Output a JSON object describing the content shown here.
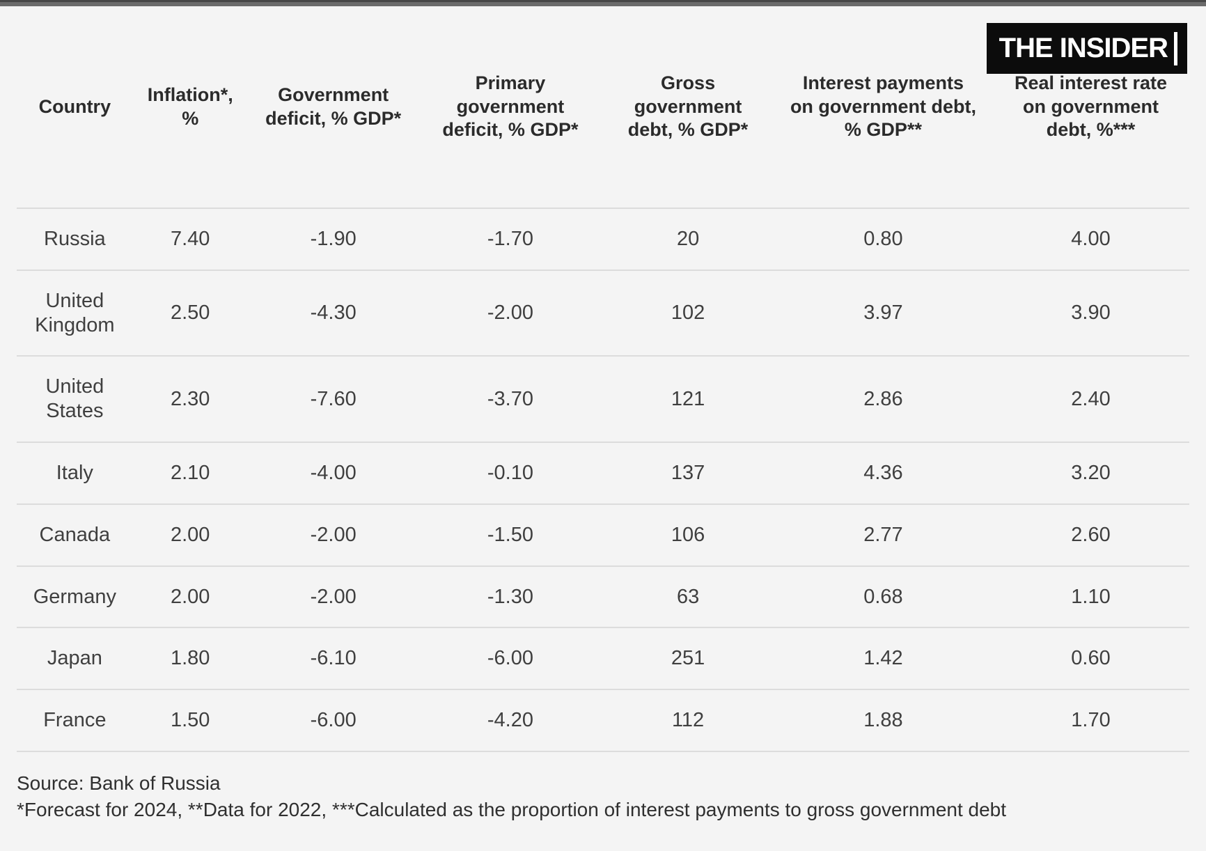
{
  "page": {
    "background": "#f4f4f4",
    "topbar_color": "#6b6b6b",
    "topbar_edge_color": "#474747",
    "divider_color": "#dcdcdc",
    "header_text_color": "#2b2b2b",
    "body_text_color": "#3f3f3f"
  },
  "logo": {
    "text": "THE INSIDER",
    "background": "#0c0c0c",
    "color": "#ffffff"
  },
  "table": {
    "columns": [
      {
        "key": "country",
        "lines": [
          "Country"
        ],
        "width_pct": 9.9
      },
      {
        "key": "inflation",
        "lines": [
          "Inflation*,",
          "%"
        ],
        "width_pct": 9.8
      },
      {
        "key": "gov_deficit",
        "lines": [
          "Government",
          "deficit, % GDP*"
        ],
        "width_pct": 14.6
      },
      {
        "key": "primary_deficit",
        "lines": [
          "Primary",
          "government",
          "deficit, % GDP*"
        ],
        "width_pct": 15.6
      },
      {
        "key": "gross_debt",
        "lines": [
          "Gross",
          "government",
          "debt, % GDP*"
        ],
        "width_pct": 14.7
      },
      {
        "key": "interest_payments",
        "lines": [
          "Interest payments",
          "on government debt,",
          "% GDP**"
        ],
        "width_pct": 18.6
      },
      {
        "key": "real_rate",
        "lines": [
          "Real interest rate",
          "on government",
          "debt, %***"
        ],
        "width_pct": 16.8
      }
    ],
    "rows": [
      {
        "country": "Russia",
        "values": [
          "7.40",
          "-1.90",
          "-1.70",
          "20",
          "0.80",
          "4.00"
        ]
      },
      {
        "country": "United Kingdom",
        "values": [
          "2.50",
          "-4.30",
          "-2.00",
          "102",
          "3.97",
          "3.90"
        ]
      },
      {
        "country": "United States",
        "values": [
          "2.30",
          "-7.60",
          "-3.70",
          "121",
          "2.86",
          "2.40"
        ]
      },
      {
        "country": "Italy",
        "values": [
          "2.10",
          "-4.00",
          "-0.10",
          "137",
          "4.36",
          "3.20"
        ]
      },
      {
        "country": "Canada",
        "values": [
          "2.00",
          "-2.00",
          "-1.50",
          "106",
          "2.77",
          "2.60"
        ]
      },
      {
        "country": "Germany",
        "values": [
          "2.00",
          "-2.00",
          "-1.30",
          "63",
          "0.68",
          "1.10"
        ]
      },
      {
        "country": "Japan",
        "values": [
          "1.80",
          "-6.10",
          "-6.00",
          "251",
          "1.42",
          "0.60"
        ]
      },
      {
        "country": "France",
        "values": [
          "1.50",
          "-6.00",
          "-4.20",
          "112",
          "1.88",
          "1.70"
        ]
      }
    ]
  },
  "footer": {
    "source": "Source: Bank of Russia",
    "notes": "*Forecast for 2024, **Data for 2022, ***Calculated as the proportion of interest payments to gross government debt"
  },
  "chart_data": {
    "type": "table",
    "columns": [
      "Country",
      "Inflation*, %",
      "Government deficit, % GDP*",
      "Primary government deficit, % GDP*",
      "Gross government debt, % GDP*",
      "Interest payments on government debt, % GDP**",
      "Real interest rate on government debt, %***"
    ],
    "rows": [
      [
        "Russia",
        7.4,
        -1.9,
        -1.7,
        20,
        0.8,
        4.0
      ],
      [
        "United Kingdom",
        2.5,
        -4.3,
        -2.0,
        102,
        3.97,
        3.9
      ],
      [
        "United States",
        2.3,
        -7.6,
        -3.7,
        121,
        2.86,
        2.4
      ],
      [
        "Italy",
        2.1,
        -4.0,
        -0.1,
        137,
        4.36,
        3.2
      ],
      [
        "Canada",
        2.0,
        -2.0,
        -1.5,
        106,
        2.77,
        2.6
      ],
      [
        "Germany",
        2.0,
        -2.0,
        -1.3,
        63,
        0.68,
        1.1
      ],
      [
        "Japan",
        1.8,
        -6.1,
        -6.0,
        251,
        1.42,
        0.6
      ],
      [
        "France",
        1.5,
        -6.0,
        -4.2,
        112,
        1.88,
        1.7
      ]
    ],
    "source": "Bank of Russia",
    "footnotes": "*Forecast for 2024, **Data for 2022, ***Calculated as the proportion of interest payments to gross government debt"
  }
}
